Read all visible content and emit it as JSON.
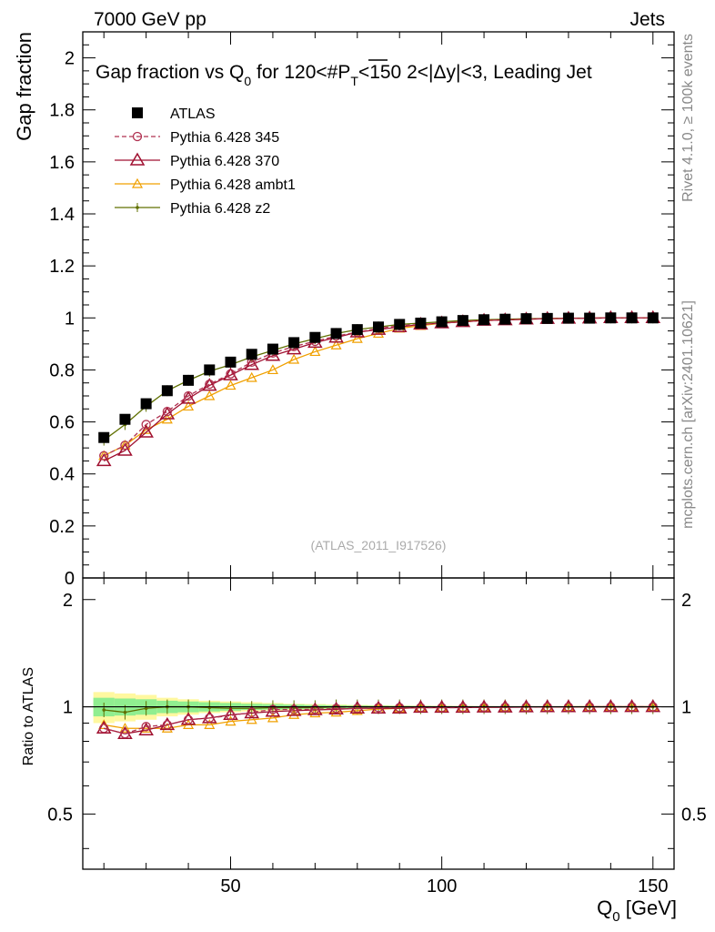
{
  "header": {
    "left": "7000 GeV pp",
    "right": "Jets"
  },
  "side_text": {
    "rivet": "Rivet 4.1.0, ≥ 100k events",
    "mcplots": "mcplots.cern.ch [arXiv:2401.10621]"
  },
  "colors": {
    "atlas": "#000000",
    "p345": "#b03050",
    "p370": "#a01030",
    "ambt1": "#f0a000",
    "z2": "#607000",
    "band_yellow": "#fff8a0",
    "band_green": "#90ee90"
  },
  "chart_data": {
    "type": "scatter",
    "title": {
      "prefix": "Gap fraction vs Q",
      "prefix_sub": "0",
      "mid": " for 120<#",
      "overline": "P",
      "overline_sub": "T",
      "suffix": "<150  2<|Δy|<3, Leading Jet"
    },
    "watermark": "(ATLAS_2011_I917526)",
    "xlabel": "Q",
    "xlabel_sub": "0",
    "xlabel_unit": " [GeV]",
    "ylabel": "Gap fraction",
    "ratio_ylabel": "Ratio to ATLAS",
    "xlim": [
      15,
      155
    ],
    "ylim": [
      0,
      2.1
    ],
    "ratio_ylim": [
      0.35,
      2.3
    ],
    "xticks": [
      50,
      100,
      150
    ],
    "yticks": [
      0,
      0.2,
      0.4,
      0.6,
      0.8,
      1,
      1.2,
      1.4,
      1.6,
      1.8,
      2
    ],
    "ytick_labels": [
      "0",
      "0.2",
      "0.4",
      "0.6",
      "0.8",
      "1",
      "1.2",
      "1.4",
      "1.6",
      "1.8",
      "2"
    ],
    "ratio_yticks": [
      0.5,
      1,
      2
    ],
    "ratio_ytick_labels": [
      "0.5",
      "1",
      "2"
    ],
    "x": [
      20,
      25,
      30,
      35,
      40,
      45,
      50,
      55,
      60,
      65,
      70,
      75,
      80,
      85,
      90,
      95,
      100,
      105,
      110,
      115,
      120,
      125,
      130,
      135,
      140,
      145,
      150
    ],
    "series": [
      {
        "name": "ATLAS",
        "style": "square",
        "values": [
          0.54,
          0.61,
          0.67,
          0.72,
          0.76,
          0.8,
          0.83,
          0.86,
          0.88,
          0.905,
          0.925,
          0.94,
          0.955,
          0.965,
          0.975,
          0.98,
          0.985,
          0.99,
          0.993,
          0.995,
          0.997,
          0.998,
          0.999,
          0.999,
          1.0,
          1.0,
          1.0
        ],
        "ratio": [
          1,
          1,
          1,
          1,
          1,
          1,
          1,
          1,
          1,
          1,
          1,
          1,
          1,
          1,
          1,
          1,
          1,
          1,
          1,
          1,
          1,
          1,
          1,
          1,
          1,
          1,
          1
        ],
        "band_yellow": [
          0.1,
          0.09,
          0.08,
          0.06,
          0.05,
          0.04,
          0.035,
          0.03,
          0.025,
          0.02,
          0.018,
          0.015,
          0.012,
          0.01,
          0.008,
          0.007,
          0.006,
          0.005,
          0.004,
          0.003,
          0.003,
          0.002,
          0.002,
          0.002,
          0.001,
          0.001,
          0.001
        ],
        "band_green": [
          0.06,
          0.055,
          0.05,
          0.04,
          0.035,
          0.03,
          0.025,
          0.02,
          0.018,
          0.015,
          0.012,
          0.01,
          0.008,
          0.007,
          0.006,
          0.005,
          0.004,
          0.003,
          0.003,
          0.002,
          0.002,
          0.002,
          0.001,
          0.001,
          0.001,
          0.001,
          0.001
        ]
      },
      {
        "name": "Pythia 6.428 345",
        "style": "circle-dashed",
        "values": [
          0.47,
          0.51,
          0.59,
          0.64,
          0.7,
          0.745,
          0.785,
          0.83,
          0.865,
          0.89,
          0.91,
          0.93,
          0.945,
          0.96,
          0.97,
          0.975,
          0.98,
          0.985,
          0.99,
          0.992,
          0.995,
          0.997,
          0.998,
          0.999,
          1.0,
          1.0,
          1.0
        ],
        "ratio": [
          0.87,
          0.84,
          0.88,
          0.89,
          0.92,
          0.93,
          0.945,
          0.965,
          0.983,
          0.983,
          0.984,
          0.989,
          0.99,
          0.995,
          0.995,
          0.995,
          0.995,
          0.995,
          0.997,
          0.997,
          0.998,
          0.999,
          0.999,
          1.0,
          1.0,
          1.0,
          1.0
        ]
      },
      {
        "name": "Pythia 6.428 370",
        "style": "triangle",
        "values": [
          0.45,
          0.49,
          0.56,
          0.63,
          0.69,
          0.74,
          0.78,
          0.82,
          0.855,
          0.88,
          0.905,
          0.925,
          0.945,
          0.955,
          0.965,
          0.975,
          0.98,
          0.985,
          0.99,
          0.992,
          0.995,
          0.997,
          0.998,
          0.999,
          1.0,
          1.0,
          1.0
        ],
        "ratio": [
          0.87,
          0.84,
          0.86,
          0.89,
          0.92,
          0.93,
          0.95,
          0.96,
          0.97,
          0.975,
          0.98,
          0.984,
          0.99,
          0.99,
          0.99,
          0.995,
          0.995,
          0.995,
          0.997,
          0.997,
          0.998,
          0.999,
          0.999,
          1.0,
          1.0,
          1.0,
          1.0
        ]
      },
      {
        "name": "Pythia 6.428 ambt1",
        "style": "triangle-small",
        "values": [
          0.47,
          0.51,
          0.57,
          0.61,
          0.66,
          0.7,
          0.74,
          0.77,
          0.8,
          0.84,
          0.87,
          0.895,
          0.92,
          0.94,
          0.96,
          0.97,
          0.98,
          0.985,
          0.99,
          0.992,
          0.995,
          0.997,
          0.998,
          0.999,
          1.0,
          1.0,
          1.0
        ],
        "ratio": [
          0.89,
          0.87,
          0.87,
          0.87,
          0.89,
          0.89,
          0.91,
          0.92,
          0.93,
          0.95,
          0.96,
          0.965,
          0.975,
          0.985,
          0.99,
          0.995,
          0.995,
          0.997,
          0.997,
          0.998,
          0.999,
          0.999,
          1.0,
          1.0,
          1.0,
          1.0,
          1.0
        ]
      },
      {
        "name": "Pythia 6.428 z2",
        "style": "dot",
        "values": [
          0.53,
          0.59,
          0.66,
          0.72,
          0.76,
          0.795,
          0.82,
          0.85,
          0.875,
          0.9,
          0.92,
          0.94,
          0.955,
          0.965,
          0.975,
          0.98,
          0.985,
          0.99,
          0.993,
          0.995,
          0.997,
          0.998,
          0.999,
          0.999,
          1.0,
          1.0,
          1.0
        ],
        "ratio": [
          0.98,
          0.965,
          0.99,
          1.0,
          1.0,
          0.995,
          0.99,
          0.99,
          0.995,
          0.995,
          0.995,
          1.0,
          1.0,
          1.0,
          1.0,
          1.0,
          1.0,
          1.0,
          1.0,
          1.0,
          1.0,
          1.0,
          1.0,
          1.0,
          1.0,
          1.0,
          1.0
        ]
      }
    ]
  }
}
